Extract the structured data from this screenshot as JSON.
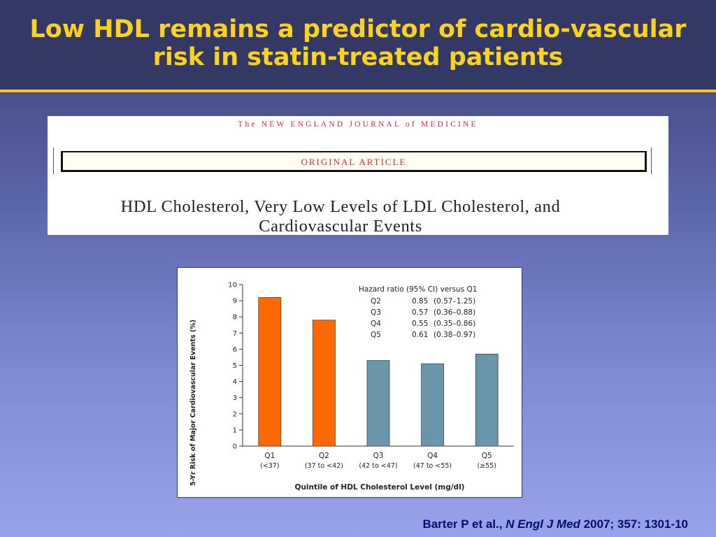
{
  "slide": {
    "title": "Low HDL remains a predictor of cardio-vascular risk in statin-treated patients"
  },
  "nejm": {
    "journal": "The NEW ENGLAND JOURNAL of MEDICINE",
    "section": "ORIGINAL ARTICLE",
    "title": "HDL Cholesterol, Very Low Levels of LDL Cholesterol, and Cardiovascular Events"
  },
  "chart_data": {
    "type": "bar",
    "categories": [
      "Q1",
      "Q2",
      "Q3",
      "Q4",
      "Q5"
    ],
    "category_sublabels": [
      "(<37)",
      "(37 to <42)",
      "(42 to <47)",
      "(47 to <55)",
      "(≥55)"
    ],
    "values": [
      9.2,
      7.8,
      5.3,
      5.1,
      5.7
    ],
    "bar_colors": [
      "#ff6a00",
      "#ff6a00",
      "#6996aa",
      "#6996aa",
      "#6996aa"
    ],
    "ylabel": "5-Yr Risk of Major Cardiovascular Events (%)",
    "xlabel": "Quintile of HDL Cholesterol Level (mg/dl)",
    "ylim": [
      0,
      10
    ],
    "yticks": [
      0,
      1,
      2,
      3,
      4,
      5,
      6,
      7,
      8,
      9,
      10
    ],
    "grid": false,
    "legend": {
      "title": "Hazard ratio (95% CI) versus Q1",
      "rows": [
        {
          "q": "Q2",
          "hr": "0.85",
          "ci": "(0.57–1.25)"
        },
        {
          "q": "Q3",
          "hr": "0.57",
          "ci": "(0.36–0.88)"
        },
        {
          "q": "Q4",
          "hr": "0.55",
          "ci": "(0.35–0.86)"
        },
        {
          "q": "Q5",
          "hr": "0.61",
          "ci": "(0.38–0.97)"
        }
      ]
    }
  },
  "citation": {
    "authors": "Barter P et al., ",
    "journal": "N Engl J Med",
    "ref": " 2007; 357: 1301-10"
  }
}
